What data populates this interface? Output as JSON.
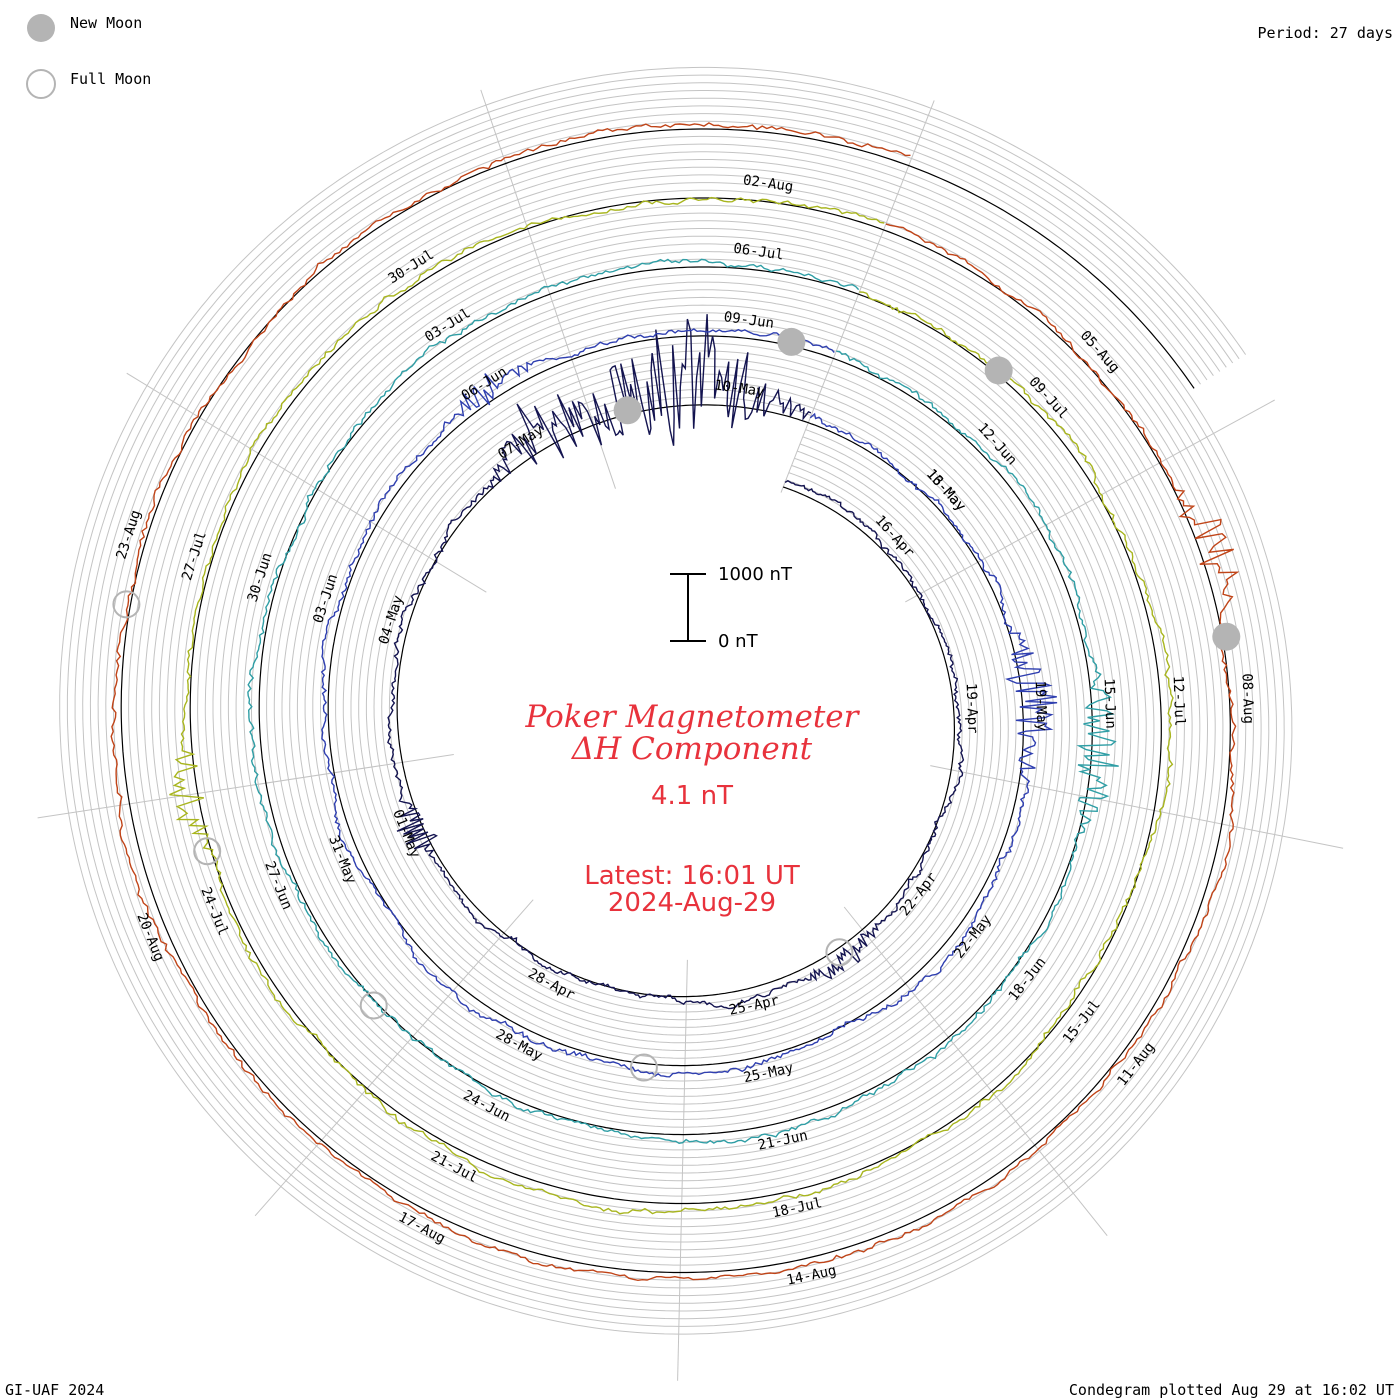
{
  "header": {
    "legend_new_moon": "New Moon",
    "legend_full_moon": "Full Moon",
    "period": "Period: 27 days"
  },
  "footer": {
    "credit": "GI-UAF 2024",
    "plotted": "Condegram plotted Aug 29 at 16:02 UT"
  },
  "center": {
    "title_line1": "Poker Magnetometer",
    "title_line2": "ΔH Component",
    "value": "4.1 nT",
    "latest_line1": "Latest: 16:01 UT",
    "latest_line2": "2024-Aug-29"
  },
  "scale_bar": {
    "top_label": "1000 nT",
    "bottom_label": "0 nT"
  },
  "colors": {
    "title": "#e8323c",
    "moon": "#b4b4b4",
    "grid": "#c4c4c4"
  },
  "chart_data": {
    "type": "line",
    "plot_style": "spiral condegram",
    "start_date": "2024-04-14",
    "end_date": "2024-08-29",
    "period_days": 27,
    "scale": {
      "bar_nT": 1000
    },
    "cycles": [
      {
        "labels": [
          "16-Apr",
          "19-Apr",
          "22-Apr",
          "25-Apr",
          "28-Apr",
          "01-May",
          "04-May",
          "07-May",
          "10-May",
          "13-May"
        ],
        "color": "#141450"
      },
      {
        "labels": [
          "16-May",
          "19-May",
          "22-May",
          "25-May",
          "28-May",
          "31-May",
          "03-Jun",
          "06-Jun",
          "09-Jun"
        ],
        "color": "#2f3fb0"
      },
      {
        "labels": [
          "12-Jun",
          "15-Jun",
          "18-Jun",
          "21-Jun",
          "24-Jun",
          "27-Jun",
          "30-Jun",
          "03-Jul",
          "06-Jul"
        ],
        "color": "#2f9ea5"
      },
      {
        "labels": [
          "09-Jul",
          "12-Jul",
          "15-Jul",
          "18-Jul",
          "21-Jul",
          "24-Jul",
          "27-Jul",
          "30-Jul",
          "02-Aug"
        ],
        "color": "#a8b51e"
      },
      {
        "labels": [
          "05-Aug",
          "08-Aug",
          "11-Aug",
          "14-Aug",
          "17-Aug",
          "20-Aug",
          "23-Aug"
        ],
        "color": "#c04418"
      }
    ],
    "new_moons": [
      "2024-05-08",
      "2024-06-06",
      "2024-07-05",
      "2024-08-04"
    ],
    "full_moons": [
      "2024-04-23",
      "2024-05-23",
      "2024-06-22",
      "2024-07-21",
      "2024-08-19"
    ]
  }
}
